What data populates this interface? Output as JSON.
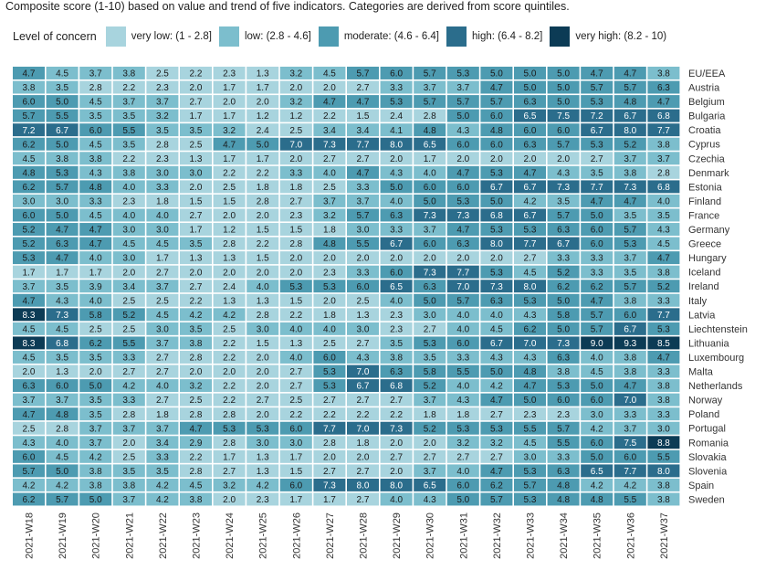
{
  "subtitle": "Composite score (1-10) based on value and trend of five indicators. Categories are derived from score quintiles.",
  "legend": {
    "title": "Level of concern",
    "items": [
      {
        "label": "very low: (1 - 2.8]",
        "color": "#a8d4de"
      },
      {
        "label": "low: (2.8 - 4.6]",
        "color": "#7cbecd"
      },
      {
        "label": "moderate: (4.6 - 6.4]",
        "color": "#4d9bb1"
      },
      {
        "label": "high: (6.4 - 8.2]",
        "color": "#2b6d8c"
      },
      {
        "label": "very high: (8.2 - 10)",
        "color": "#0c3b55"
      }
    ]
  },
  "chart_data": {
    "type": "heatmap",
    "title": "",
    "legend_title": "Level of concern",
    "thresholds": [
      2.8,
      4.6,
      6.4,
      8.2
    ],
    "colors": [
      "#a8d4de",
      "#7cbecd",
      "#4d9bb1",
      "#2b6d8c",
      "#0c3b55"
    ],
    "x": [
      "2021-W18",
      "2021-W19",
      "2021-W20",
      "2021-W21",
      "2021-W22",
      "2021-W23",
      "2021-W24",
      "2021-W25",
      "2021-W26",
      "2021-W27",
      "2021-W28",
      "2021-W29",
      "2021-W30",
      "2021-W31",
      "2021-W32",
      "2021-W33",
      "2021-W34",
      "2021-W35",
      "2021-W36",
      "2021-W37"
    ],
    "y": [
      "EU/EEA",
      "Austria",
      "Belgium",
      "Bulgaria",
      "Croatia",
      "Cyprus",
      "Czechia",
      "Denmark",
      "Estonia",
      "Finland",
      "France",
      "Germany",
      "Greece",
      "Hungary",
      "Iceland",
      "Ireland",
      "Italy",
      "Latvia",
      "Liechtenstein",
      "Lithuania",
      "Luxembourg",
      "Malta",
      "Netherlands",
      "Norway",
      "Poland",
      "Portugal",
      "Romania",
      "Slovakia",
      "Slovenia",
      "Spain",
      "Sweden"
    ],
    "values": [
      [
        4.7,
        4.5,
        3.7,
        3.8,
        2.5,
        2.2,
        2.3,
        1.3,
        3.2,
        4.5,
        5.7,
        6.0,
        5.7,
        5.3,
        5.0,
        5.0,
        5.0,
        4.7,
        4.7,
        3.8
      ],
      [
        3.8,
        3.5,
        2.8,
        2.2,
        2.3,
        2.0,
        1.7,
        1.7,
        2.0,
        2.0,
        2.7,
        3.3,
        3.7,
        3.7,
        4.7,
        5.0,
        5.0,
        5.7,
        5.7,
        6.3
      ],
      [
        6.0,
        5.0,
        4.5,
        3.7,
        3.7,
        2.7,
        2.0,
        2.0,
        3.2,
        4.7,
        4.7,
        5.3,
        5.7,
        5.7,
        5.7,
        6.3,
        5.0,
        5.3,
        4.8,
        4.7
      ],
      [
        5.7,
        5.5,
        3.5,
        3.5,
        3.2,
        1.7,
        1.7,
        1.2,
        1.2,
        2.2,
        1.5,
        2.4,
        2.8,
        5.0,
        6.0,
        6.5,
        7.5,
        7.2,
        6.7,
        6.8
      ],
      [
        7.2,
        6.7,
        6.0,
        5.5,
        3.5,
        3.5,
        3.2,
        2.4,
        2.5,
        3.4,
        3.4,
        4.1,
        4.8,
        4.3,
        4.8,
        6.0,
        6.0,
        6.7,
        8.0,
        7.7
      ],
      [
        6.2,
        5.0,
        4.5,
        3.5,
        2.8,
        2.5,
        4.7,
        5.0,
        7.0,
        7.3,
        7.7,
        8.0,
        6.5,
        6.0,
        6.0,
        6.3,
        5.7,
        5.3,
        5.2,
        3.8
      ],
      [
        4.5,
        3.8,
        3.8,
        2.2,
        2.3,
        1.3,
        1.7,
        1.7,
        2.0,
        2.7,
        2.7,
        2.0,
        1.7,
        2.0,
        2.0,
        2.0,
        2.0,
        2.7,
        3.7,
        3.7
      ],
      [
        4.8,
        5.3,
        4.3,
        3.8,
        3.0,
        3.0,
        2.2,
        2.2,
        3.3,
        4.0,
        4.7,
        4.3,
        4.0,
        4.7,
        5.3,
        4.7,
        4.3,
        3.5,
        3.8,
        2.8
      ],
      [
        6.2,
        5.7,
        4.8,
        4.0,
        3.3,
        2.0,
        2.5,
        1.8,
        1.8,
        2.5,
        3.3,
        5.0,
        6.0,
        6.0,
        6.7,
        6.7,
        7.3,
        7.7,
        7.3,
        6.8
      ],
      [
        3.0,
        3.0,
        3.3,
        2.3,
        1.8,
        1.5,
        1.5,
        2.8,
        2.7,
        3.7,
        3.7,
        4.0,
        5.0,
        5.3,
        5.0,
        4.2,
        3.5,
        4.7,
        4.7,
        4.0
      ],
      [
        6.0,
        5.0,
        4.5,
        4.0,
        4.0,
        2.7,
        2.0,
        2.0,
        2.3,
        3.2,
        5.7,
        6.3,
        7.3,
        7.3,
        6.8,
        6.7,
        5.7,
        5.0,
        3.5,
        3.5
      ],
      [
        5.2,
        4.7,
        4.7,
        3.0,
        3.0,
        1.7,
        1.2,
        1.5,
        1.5,
        1.8,
        3.0,
        3.3,
        3.7,
        4.7,
        5.3,
        5.3,
        6.3,
        6.0,
        5.7,
        4.3
      ],
      [
        5.2,
        6.3,
        4.7,
        4.5,
        4.5,
        3.5,
        2.8,
        2.2,
        2.8,
        4.8,
        5.5,
        6.7,
        6.0,
        6.3,
        8.0,
        7.7,
        6.7,
        6.0,
        5.3,
        4.5
      ],
      [
        5.3,
        4.7,
        4.0,
        3.0,
        1.7,
        1.3,
        1.3,
        1.5,
        2.0,
        2.0,
        2.0,
        2.0,
        2.0,
        2.0,
        2.0,
        2.7,
        3.3,
        3.3,
        3.7,
        4.7
      ],
      [
        1.7,
        1.7,
        1.7,
        2.0,
        2.7,
        2.0,
        2.0,
        2.0,
        2.0,
        2.3,
        3.3,
        6.0,
        7.3,
        7.7,
        5.3,
        4.5,
        5.2,
        3.3,
        3.5,
        3.8
      ],
      [
        3.7,
        3.5,
        3.9,
        3.4,
        3.7,
        2.7,
        2.4,
        4.0,
        5.3,
        5.3,
        6.0,
        6.5,
        6.3,
        7.0,
        7.3,
        8.0,
        6.2,
        6.2,
        5.7,
        5.2
      ],
      [
        4.7,
        4.3,
        4.0,
        2.5,
        2.5,
        2.2,
        1.3,
        1.3,
        1.5,
        2.0,
        2.5,
        4.0,
        5.0,
        5.7,
        6.3,
        5.3,
        5.0,
        4.7,
        3.8,
        3.3
      ],
      [
        8.3,
        7.3,
        5.8,
        5.2,
        4.5,
        4.2,
        4.2,
        2.8,
        2.2,
        1.8,
        1.3,
        2.3,
        3.0,
        4.0,
        4.0,
        4.3,
        5.8,
        5.7,
        6.0,
        7.7
      ],
      [
        4.5,
        4.5,
        2.5,
        2.5,
        3.0,
        3.5,
        2.5,
        3.0,
        4.0,
        4.0,
        3.0,
        2.3,
        2.7,
        4.0,
        4.5,
        6.2,
        5.0,
        5.7,
        6.7,
        5.3
      ],
      [
        8.3,
        6.8,
        6.2,
        5.5,
        3.7,
        3.8,
        2.2,
        1.5,
        1.3,
        2.5,
        2.7,
        3.5,
        5.3,
        6.0,
        6.7,
        7.0,
        7.3,
        9.0,
        9.3,
        8.5
      ],
      [
        4.5,
        3.5,
        3.5,
        3.3,
        2.7,
        2.8,
        2.2,
        2.0,
        4.0,
        6.0,
        4.3,
        3.8,
        3.5,
        3.3,
        4.3,
        4.3,
        6.3,
        4.0,
        3.8,
        4.7
      ],
      [
        2.0,
        1.3,
        2.0,
        2.7,
        2.7,
        2.0,
        2.0,
        2.0,
        2.7,
        5.3,
        7.0,
        6.3,
        5.8,
        5.5,
        5.0,
        4.8,
        3.8,
        4.5,
        3.8,
        3.3
      ],
      [
        6.3,
        6.0,
        5.0,
        4.2,
        4.0,
        3.2,
        2.2,
        2.0,
        2.7,
        5.3,
        6.7,
        6.8,
        5.2,
        4.0,
        4.2,
        4.7,
        5.3,
        5.0,
        4.7,
        3.8
      ],
      [
        3.7,
        3.7,
        3.5,
        3.3,
        2.7,
        2.5,
        2.2,
        2.7,
        2.5,
        2.7,
        2.7,
        2.7,
        3.7,
        4.3,
        4.7,
        5.0,
        6.0,
        6.0,
        7.0,
        3.8
      ],
      [
        4.7,
        4.8,
        3.5,
        2.8,
        1.8,
        2.8,
        2.8,
        2.0,
        2.2,
        2.2,
        2.2,
        2.2,
        1.8,
        1.8,
        2.7,
        2.3,
        2.3,
        3.0,
        3.3,
        3.3
      ],
      [
        2.5,
        2.8,
        3.7,
        3.7,
        3.7,
        4.7,
        5.3,
        5.3,
        6.0,
        7.7,
        7.0,
        7.3,
        5.2,
        5.3,
        5.3,
        5.5,
        5.7,
        4.2,
        3.7,
        3.0
      ],
      [
        4.3,
        4.0,
        3.7,
        2.0,
        3.4,
        2.9,
        2.8,
        3.0,
        3.0,
        2.8,
        1.8,
        2.0,
        2.0,
        3.2,
        3.2,
        4.5,
        5.5,
        6.0,
        7.5,
        8.8
      ],
      [
        6.0,
        4.5,
        4.2,
        2.5,
        3.3,
        2.2,
        1.7,
        1.3,
        1.7,
        2.0,
        2.0,
        2.7,
        2.7,
        2.7,
        2.7,
        3.0,
        3.3,
        5.0,
        6.0,
        5.5
      ],
      [
        5.7,
        5.0,
        3.8,
        3.5,
        3.5,
        2.8,
        2.7,
        1.3,
        1.5,
        2.7,
        2.7,
        2.0,
        3.7,
        4.0,
        4.7,
        5.3,
        6.3,
        6.5,
        7.7,
        8.0
      ],
      [
        4.2,
        4.2,
        3.8,
        3.8,
        4.2,
        4.5,
        3.2,
        4.2,
        6.0,
        7.3,
        8.0,
        8.0,
        6.5,
        6.0,
        6.2,
        5.7,
        4.8,
        4.2,
        4.2,
        3.8
      ],
      [
        6.2,
        5.7,
        5.0,
        3.7,
        4.2,
        3.8,
        2.0,
        2.3,
        1.7,
        1.7,
        2.7,
        4.0,
        4.3,
        5.0,
        5.7,
        5.3,
        4.8,
        4.8,
        5.5,
        3.8
      ]
    ]
  }
}
